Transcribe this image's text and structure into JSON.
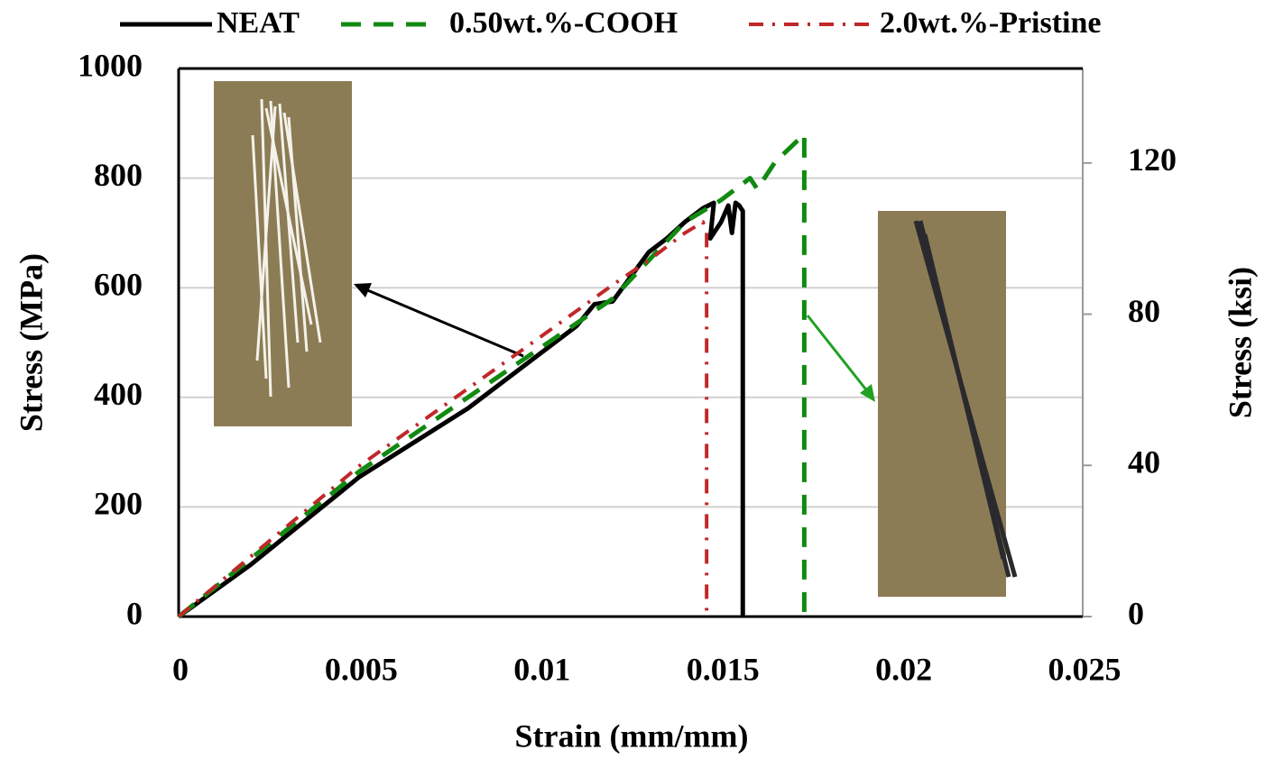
{
  "chart_data": {
    "type": "line",
    "x_label": "Strain (mm/mm)",
    "y_label": "Stress (MPa)",
    "y2_label": "Stress (ksi)",
    "xlim": [
      0,
      0.025
    ],
    "xticks": [
      0,
      0.005,
      0.01,
      0.015,
      0.02,
      0.025
    ],
    "ylim": [
      0,
      1000
    ],
    "yticks": [
      0,
      200,
      400,
      600,
      800,
      1000
    ],
    "y2lim": [
      0,
      145
    ],
    "y2ticks": [
      0,
      40,
      80,
      120
    ],
    "grid": true,
    "legend": "top",
    "series": [
      {
        "name": "NEAT",
        "color": "#000000",
        "style": "solid",
        "x": [
          0,
          0.002,
          0.005,
          0.008,
          0.01,
          0.011,
          0.0115,
          0.012,
          0.0125,
          0.013,
          0.0135,
          0.014,
          0.0145,
          0.0148,
          0.0147,
          0.015,
          0.0152,
          0.0153,
          0.0154,
          0.0155,
          0.0156,
          0.0156
        ],
        "values": [
          0,
          95,
          255,
          380,
          480,
          530,
          570,
          575,
          620,
          665,
          690,
          720,
          745,
          755,
          690,
          720,
          750,
          700,
          755,
          750,
          740,
          0
        ]
      },
      {
        "name": "0.50wt.%-COOH",
        "color": "#108a10",
        "style": "dash",
        "x": [
          0,
          0.005,
          0.01,
          0.012,
          0.014,
          0.015,
          0.0158,
          0.016,
          0.0165,
          0.0173,
          0.0173
        ],
        "values": [
          0,
          265,
          490,
          580,
          720,
          760,
          800,
          780,
          830,
          880,
          0
        ]
      },
      {
        "name": "2.0wt.%-Pristine",
        "color": "#c0282a",
        "style": "dashdot",
        "x": [
          0,
          0.005,
          0.01,
          0.012,
          0.013,
          0.014,
          0.0145,
          0.0146,
          0.0146
        ],
        "values": [
          0,
          275,
          510,
          605,
          650,
          700,
          720,
          700,
          0
        ]
      }
    ]
  }
}
